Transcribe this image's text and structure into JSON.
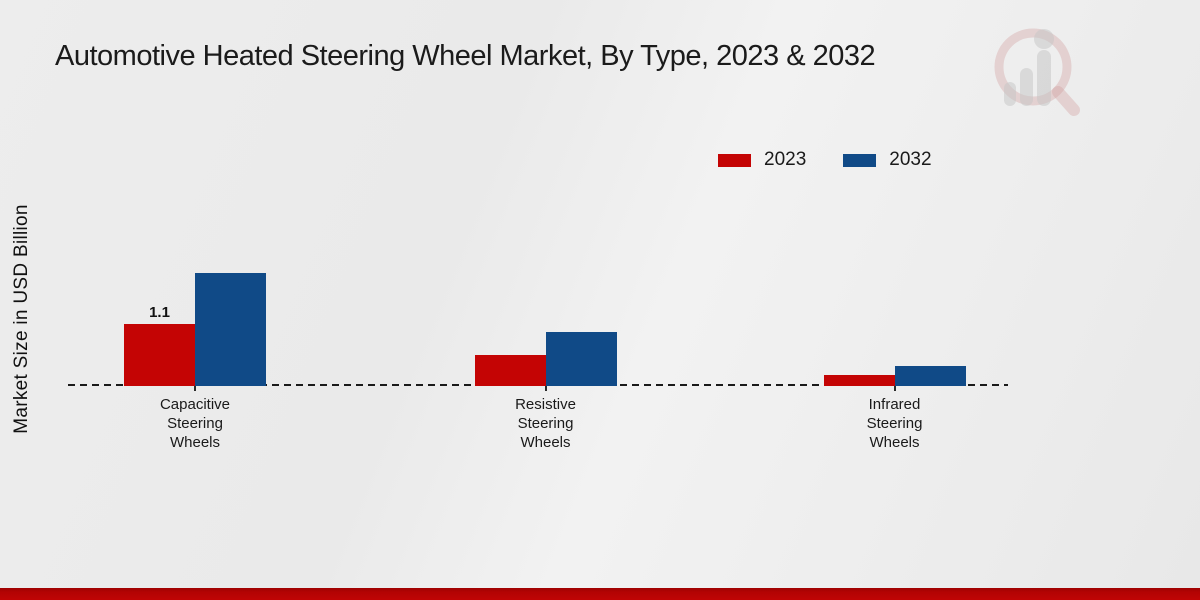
{
  "title": "Automotive Heated Steering Wheel Market, By Type, 2023 & 2032",
  "y_axis_label": "Market Size in USD Billion",
  "legend": {
    "items": [
      {
        "label": "2023",
        "color": "#c40404"
      },
      {
        "label": "2032",
        "color": "#104a87"
      }
    ]
  },
  "colors": {
    "series_2023": "#c40404",
    "series_2032": "#104a87",
    "footer_stripe": "#c00404",
    "background": "#ebebeb"
  },
  "watermark_icon": "magnifier-bar-chart-logo",
  "chart_data": {
    "type": "bar",
    "title": "Automotive Heated Steering Wheel Market, By Type, 2023 & 2032",
    "xlabel": "",
    "ylabel": "Market Size in USD Billion",
    "categories": [
      "Capacitive Steering Wheels",
      "Resistive Steering Wheels",
      "Infrared Steering Wheels"
    ],
    "series": [
      {
        "name": "2023",
        "color": "#c40404",
        "values": [
          1.1,
          0.55,
          0.2
        ]
      },
      {
        "name": "2032",
        "color": "#104a87",
        "values": [
          2.0,
          0.95,
          0.35
        ]
      }
    ],
    "data_labels": [
      {
        "series": "2023",
        "category": "Capacitive Steering Wheels",
        "text": "1.1"
      }
    ],
    "ylim": [
      0,
      2.2
    ],
    "grid": false,
    "axis_style": "dashed-zero-line",
    "legend_position": "top-right"
  }
}
